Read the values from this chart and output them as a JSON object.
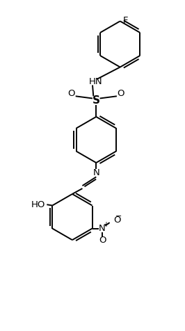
{
  "bg_color": "#ffffff",
  "line_color": "#000000",
  "line_width": 1.4,
  "figsize": [
    2.66,
    4.76
  ],
  "dpi": 100,
  "xlim": [
    0,
    10
  ],
  "ylim": [
    0,
    18
  ]
}
